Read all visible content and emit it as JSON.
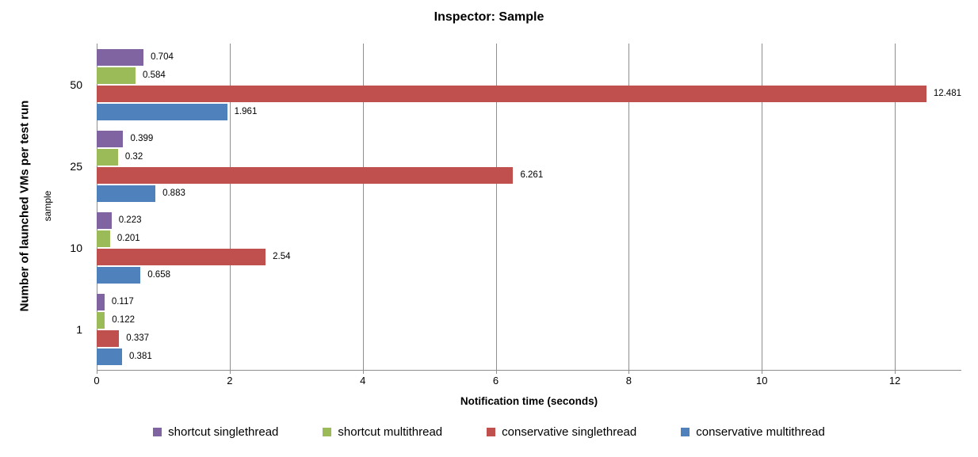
{
  "title": "Inspector: Sample",
  "colors": {
    "series_purple": "#8064A2",
    "series_green": "#9BBB59",
    "series_red": "#C0504D",
    "series_blue": "#4F81BD",
    "gridline": "#8E8E8E",
    "axis_line": "#8E8E8E",
    "text": "#000000",
    "background": "#FFFFFF"
  },
  "chart_data": {
    "type": "bar",
    "orientation": "horizontal",
    "title": "Inspector: Sample",
    "categories": [
      "50",
      "25",
      "10",
      "1"
    ],
    "series": [
      {
        "name": "shortcut singlethread",
        "color": "#8064A2",
        "values": [
          0.704,
          0.399,
          0.223,
          0.117
        ]
      },
      {
        "name": "shortcut multithread",
        "color": "#9BBB59",
        "values": [
          0.584,
          0.32,
          0.201,
          0.122
        ]
      },
      {
        "name": "conservative singlethread",
        "color": "#C0504D",
        "values": [
          12.481,
          6.261,
          2.54,
          0.337
        ]
      },
      {
        "name": "conservative multithread",
        "color": "#4F81BD",
        "values": [
          1.961,
          0.883,
          0.658,
          0.381
        ]
      }
    ],
    "data_labels": [
      "0.704",
      "0.584",
      "12.481",
      "1.961",
      "0.399",
      "0.32",
      "6.261",
      "0.883",
      "0.223",
      "0.201",
      "2.54",
      "0.658",
      "0.117",
      "0.122",
      "0.337",
      "0.381"
    ],
    "xlabel": "Notification time (seconds)",
    "ylabel": "Number of launched VMs per test run",
    "ylabel_secondary": "sample",
    "xlim": [
      0,
      13
    ],
    "xticks": [
      0,
      2,
      4,
      6,
      8,
      10,
      12
    ],
    "grid": true,
    "legend_position": "bottom",
    "legend": [
      "shortcut singlethread",
      "shortcut multithread",
      "conservative singlethread",
      "conservative multithread"
    ]
  }
}
